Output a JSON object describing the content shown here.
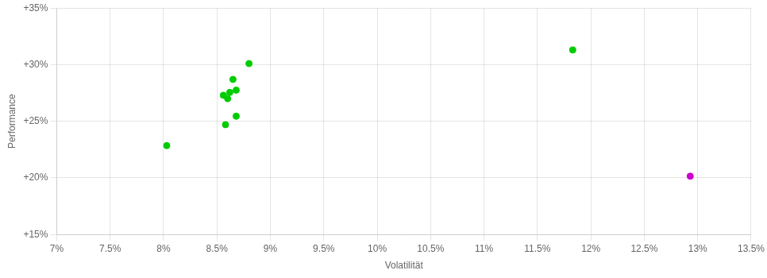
{
  "chart_data": {
    "type": "scatter",
    "xlabel": "Volatilität",
    "ylabel": "Performance",
    "xlim": [
      0.07,
      0.135
    ],
    "ylim": [
      0.15,
      0.35
    ],
    "xticks": [
      {
        "value": 0.07,
        "label": "7%"
      },
      {
        "value": 0.075,
        "label": "7.5%"
      },
      {
        "value": 0.08,
        "label": "8%"
      },
      {
        "value": 0.085,
        "label": "8.5%"
      },
      {
        "value": 0.09,
        "label": "9%"
      },
      {
        "value": 0.095,
        "label": "9.5%"
      },
      {
        "value": 0.1,
        "label": "10%"
      },
      {
        "value": 0.105,
        "label": "10.5%"
      },
      {
        "value": 0.11,
        "label": "11%"
      },
      {
        "value": 0.115,
        "label": "11.5%"
      },
      {
        "value": 0.12,
        "label": "12%"
      },
      {
        "value": 0.125,
        "label": "12.5%"
      },
      {
        "value": 0.13,
        "label": "13%"
      },
      {
        "value": 0.135,
        "label": "13.5%"
      }
    ],
    "yticks": [
      {
        "value": 0.15,
        "label": "+15%"
      },
      {
        "value": 0.2,
        "label": "+20%"
      },
      {
        "value": 0.25,
        "label": "+25%"
      },
      {
        "value": 0.3,
        "label": "+30%"
      },
      {
        "value": 0.35,
        "label": "+35%"
      }
    ],
    "grid": true,
    "series": [
      {
        "color": "#00cc00",
        "x": [
          0.088,
          0.0865,
          0.0868,
          0.0862,
          0.0856,
          0.086,
          0.0868,
          0.0858,
          0.0803,
          0.1183
        ],
        "values": [
          0.301,
          0.287,
          0.2775,
          0.2755,
          0.273,
          0.27,
          0.2545,
          0.247,
          0.2285,
          0.313
        ]
      },
      {
        "color": "#cc00cc",
        "x": [
          0.1293
        ],
        "values": [
          0.2015
        ]
      }
    ]
  }
}
